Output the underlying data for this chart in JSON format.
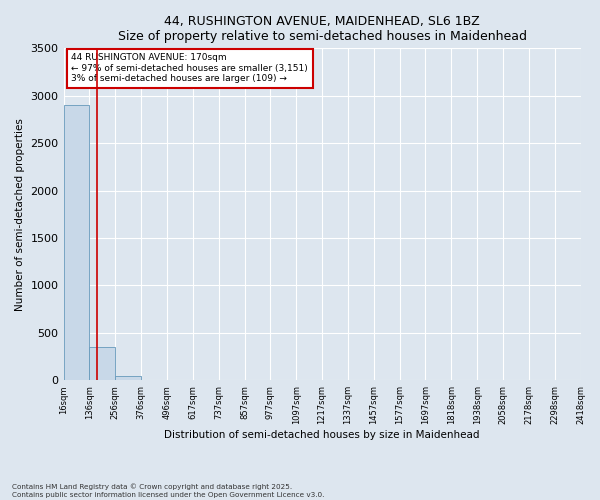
{
  "title_line1": "44, RUSHINGTON AVENUE, MAIDENHEAD, SL6 1BZ",
  "title_line2": "Size of property relative to semi-detached houses in Maidenhead",
  "xlabel": "Distribution of semi-detached houses by size in Maidenhead",
  "ylabel": "Number of semi-detached properties",
  "annotation_line1": "44 RUSHINGTON AVENUE: 170sqm",
  "annotation_line2": "← 97% of semi-detached houses are smaller (3,151)",
  "annotation_line3": "3% of semi-detached houses are larger (109) →",
  "footer_line1": "Contains HM Land Registry data © Crown copyright and database right 2025.",
  "footer_line2": "Contains public sector information licensed under the Open Government Licence v3.0.",
  "bin_edges": [
    16,
    136,
    256,
    376,
    496,
    617,
    737,
    857,
    977,
    1097,
    1217,
    1337,
    1457,
    1577,
    1697,
    1818,
    1938,
    2058,
    2178,
    2298,
    2418
  ],
  "bar_heights": [
    2900,
    350,
    50,
    5,
    2,
    1,
    1,
    0,
    0,
    0,
    0,
    0,
    0,
    0,
    0,
    0,
    0,
    0,
    0,
    0
  ],
  "property_size": 170,
  "bar_color": "#c8d8e8",
  "bar_edge_color": "#6699bb",
  "vline_color": "#cc0000",
  "background_color": "#dde6ef",
  "plot_bg_color": "#dde6ef",
  "annotation_box_color": "#ffffff",
  "annotation_box_edge": "#cc0000",
  "ylim": [
    0,
    3500
  ],
  "yticks": [
    0,
    500,
    1000,
    1500,
    2000,
    2500,
    3000,
    3500
  ],
  "tick_labels": [
    "16sqm",
    "136sqm",
    "256sqm",
    "376sqm",
    "496sqm",
    "617sqm",
    "737sqm",
    "857sqm",
    "977sqm",
    "1097sqm",
    "1217sqm",
    "1337sqm",
    "1457sqm",
    "1577sqm",
    "1697sqm",
    "1818sqm",
    "1938sqm",
    "2058sqm",
    "2178sqm",
    "2298sqm",
    "2418sqm"
  ],
  "title_fontsize": 9,
  "ylabel_fontsize": 7.5,
  "xlabel_fontsize": 7.5,
  "ytick_fontsize": 8,
  "xtick_fontsize": 6
}
